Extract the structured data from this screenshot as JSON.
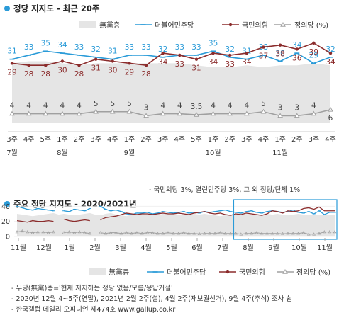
{
  "colors": {
    "undecided": "#e5e5e5",
    "democratic": "#2a9bd8",
    "ppp": "#8b2c2c",
    "justice": "#a0a0a0",
    "accent": "#2a9bd8"
  },
  "chart_data": [
    {
      "type": "line",
      "title": "정당 지지도 - 최근 20주",
      "legend_position": "top",
      "week_labels": [
        "3주",
        "4주",
        "5주",
        "1주",
        "2주",
        "3주",
        "4주",
        "1주",
        "2주",
        "3주",
        "4주",
        "5주",
        "1주",
        "2주",
        "3주",
        "4주",
        "1주",
        "2주",
        "3주",
        "4주"
      ],
      "month_labels": [
        {
          "label": "7월",
          "index": 0
        },
        {
          "label": "8월",
          "index": 3
        },
        {
          "label": "9월",
          "index": 7
        },
        {
          "label": "10월",
          "index": 12
        },
        {
          "label": "11월",
          "index": 16
        }
      ],
      "series": [
        {
          "name": "無黨층",
          "type": "area",
          "values": [
            29,
            30,
            30,
            29,
            28,
            29,
            29,
            29,
            29,
            29,
            29,
            28,
            27,
            27,
            28,
            27,
            28,
            28,
            29,
            28
          ],
          "labeled": false
        },
        {
          "name": "더불어민주당",
          "values": [
            31,
            33,
            35,
            34,
            33,
            32,
            31,
            33,
            33,
            32,
            33,
            33,
            35,
            32,
            31,
            33,
            30,
            34,
            29,
            32
          ],
          "labeled": true
        },
        {
          "name": "국민의힘",
          "values": [
            29,
            28,
            28,
            30,
            28,
            31,
            30,
            29,
            28,
            34,
            33,
            31,
            34,
            33,
            34,
            37,
            38,
            36,
            39,
            34
          ],
          "labeled": true
        },
        {
          "name": "정의당 (%)",
          "values": [
            4,
            4,
            4,
            4,
            4,
            5,
            5,
            5,
            3,
            4,
            4,
            3.5,
            4,
            4,
            4,
            5,
            3,
            3,
            4,
            6
          ],
          "labeled": true
        }
      ],
      "footnote": "- 국민의당 3%, 열린민주당 3%, 그 외 정당/단체 1%"
    },
    {
      "type": "line",
      "title": "주요 정당 지지도 - 2020/2021년",
      "legend_position": "bottom",
      "yticks": [
        0,
        20,
        40
      ],
      "ylim": [
        0,
        45
      ],
      "month_labels": [
        "11월",
        "12월",
        "1월",
        "2월",
        "3월",
        "4월",
        "5월",
        "6월",
        "7월",
        "8월",
        "9월",
        "10월",
        "11월"
      ],
      "highlight": "최근 20주",
      "series": [
        {
          "name": "無黨층",
          "type": "area",
          "values": [
            30,
            29,
            28,
            27,
            28,
            29,
            30,
            31,
            29,
            30,
            29,
            28,
            29,
            30,
            31,
            29,
            28,
            30,
            31,
            29,
            28,
            27,
            29,
            30,
            31,
            30,
            29,
            28,
            30,
            31,
            30,
            29,
            28,
            29,
            30,
            29,
            30,
            29,
            28,
            27,
            28,
            29,
            30,
            31,
            30,
            29,
            28,
            29,
            30,
            29,
            30,
            29,
            28,
            29,
            30,
            29,
            28,
            29,
            28,
            29,
            29,
            28
          ]
        },
        {
          "name": "더불어민주당",
          "values": [
            40,
            38,
            36,
            35,
            37,
            36,
            35,
            34,
            null,
            34,
            33,
            36,
            35,
            34,
            37,
            null,
            40,
            36,
            34,
            35,
            33,
            30,
            29,
            31,
            31,
            32,
            30,
            31,
            33,
            32,
            31,
            32,
            33,
            31,
            32,
            31,
            33,
            32,
            33,
            34,
            35,
            33,
            32,
            31,
            33,
            34,
            32,
            31,
            33,
            34,
            33,
            32,
            33,
            35,
            32,
            31,
            33,
            30,
            34,
            29,
            32,
            32
          ]
        },
        {
          "name": "국민의힘",
          "values": [
            21,
            20,
            19,
            21,
            20,
            20,
            21,
            20,
            null,
            23,
            21,
            20,
            21,
            22,
            21,
            null,
            22,
            25,
            26,
            27,
            29,
            31,
            30,
            29,
            30,
            30,
            29,
            30,
            31,
            30,
            30,
            31,
            30,
            29,
            31,
            32,
            33,
            31,
            30,
            31,
            29,
            28,
            30,
            29,
            31,
            30,
            29,
            28,
            30,
            34,
            33,
            31,
            34,
            33,
            34,
            37,
            38,
            36,
            39,
            34,
            34,
            34
          ]
        },
        {
          "name": "정의당 (%)",
          "values": [
            6,
            7,
            6,
            5,
            6,
            6,
            5,
            6,
            null,
            5,
            6,
            5,
            6,
            5,
            4,
            null,
            5,
            4,
            5,
            5,
            4,
            5,
            4,
            5,
            4,
            5,
            5,
            4,
            4,
            5,
            4,
            4,
            5,
            4,
            4,
            3.5,
            4,
            4,
            4,
            5,
            4,
            4,
            4,
            3,
            4,
            4,
            5,
            4,
            4,
            4,
            4,
            3.5,
            4,
            4,
            4,
            5,
            3,
            3,
            4,
            6,
            6,
            6
          ]
        }
      ]
    }
  ],
  "legend": [
    "無黨층",
    "더불어민주당",
    "국민의힘",
    "정의당 (%)"
  ],
  "notes": [
    "- 무당(無黨)층='현재 지지하는 정당 없음/모름/응답거절'",
    "- 2020년 12월 4~5주(연말), 2021년 2월 2주(설), 4월 2주(재보궐선거), 9월 4주(추석) 조사 쉼",
    "- 한국갤럽 데일리 오피니언 제474호 www.gallup.co.kr"
  ]
}
